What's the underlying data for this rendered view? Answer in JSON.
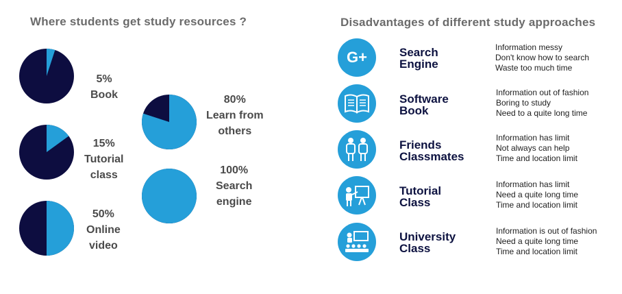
{
  "left_title": "Where students get study resources ?",
  "right_title": "Disadvantages of different study approaches",
  "colors": {
    "dark": "#0d0d40",
    "light": "#259fd9",
    "title": "#0d1240"
  },
  "chart_data": {
    "type": "pie",
    "title": "Where students get study resources ?",
    "charts": [
      {
        "percent": 5,
        "pct_label": "5%",
        "label_lines": [
          "Book"
        ]
      },
      {
        "percent": 15,
        "pct_label": "15%",
        "label_lines": [
          "Tutorial",
          "class"
        ]
      },
      {
        "percent": 50,
        "pct_label": "50%",
        "label_lines": [
          "Online",
          "video"
        ]
      },
      {
        "percent": 80,
        "pct_label": "80%",
        "label_lines": [
          "Learn from",
          "others"
        ]
      },
      {
        "percent": 100,
        "pct_label": "100%",
        "label_lines": [
          "Search",
          "engine"
        ]
      }
    ]
  },
  "approaches": [
    {
      "icon": "google-plus-icon",
      "glyph": "G+",
      "title_lines": [
        "Search",
        "Engine"
      ],
      "disadvantages": [
        "Information messy",
        "Don't know how to search",
        "Waste too much time"
      ]
    },
    {
      "icon": "book-icon",
      "title_lines": [
        "Software",
        "Book"
      ],
      "disadvantages": [
        "Information out of fashion",
        "Boring to study",
        "Need to a quite long time"
      ]
    },
    {
      "icon": "students-icon",
      "title_lines": [
        "Friends",
        "Classmates"
      ],
      "disadvantages": [
        "Information has limit",
        "Not always can help",
        "Time and location limit"
      ]
    },
    {
      "icon": "teacher-board-icon",
      "title_lines": [
        "Tutorial",
        "Class"
      ],
      "disadvantages": [
        "Information has limit",
        "Need a quite long time",
        "Time and location limit"
      ]
    },
    {
      "icon": "classroom-icon",
      "title_lines": [
        "University",
        "Class"
      ],
      "disadvantages": [
        "Information is out of fashion",
        "Need a quite long time",
        "Time and location limit"
      ]
    }
  ]
}
